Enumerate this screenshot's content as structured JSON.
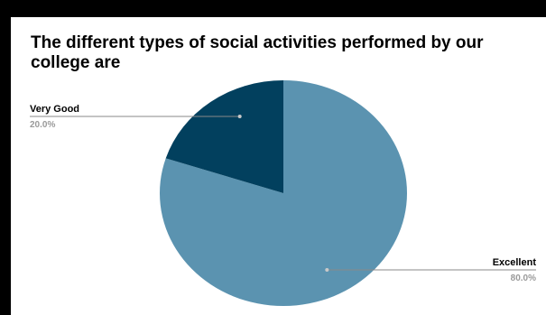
{
  "colors": {
    "page_background": "#000000",
    "card_background": "#ffffff",
    "slice_excellent": "#5b93b0",
    "slice_very_good": "#02405e",
    "leader_line": "#888888",
    "percent_text": "#9a9a9a"
  },
  "chart_data": {
    "type": "pie",
    "title": "The different types of social activities performed by our college are",
    "categories": [
      "Excellent",
      "Very Good"
    ],
    "values": [
      80.0,
      20.0
    ],
    "labels": [
      "80.0%",
      "20.0%"
    ],
    "slice_colors": [
      "#5b93b0",
      "#02405e"
    ],
    "start_angle_deg": 0,
    "direction": "clockwise",
    "legend": "none (labels outside slices with leader lines)"
  }
}
